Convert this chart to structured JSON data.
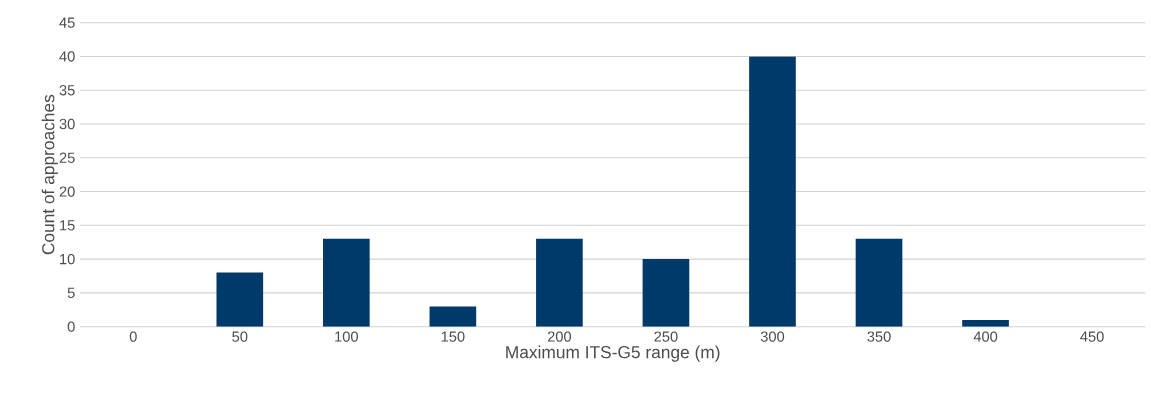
{
  "chart_data": {
    "type": "bar",
    "xlabel": "Maximum ITS-G5 range (m)",
    "ylabel": "Count of approaches",
    "categories": [
      "0",
      "50",
      "100",
      "150",
      "200",
      "250",
      "300",
      "350",
      "400",
      "450"
    ],
    "values": [
      0,
      8,
      13,
      3,
      13,
      10,
      40,
      13,
      1,
      0
    ],
    "color": "#003a6b",
    "ylim": [
      0,
      45
    ],
    "yticks": [
      0,
      5,
      10,
      15,
      20,
      25,
      30,
      35,
      40,
      45
    ],
    "grid": "y"
  }
}
